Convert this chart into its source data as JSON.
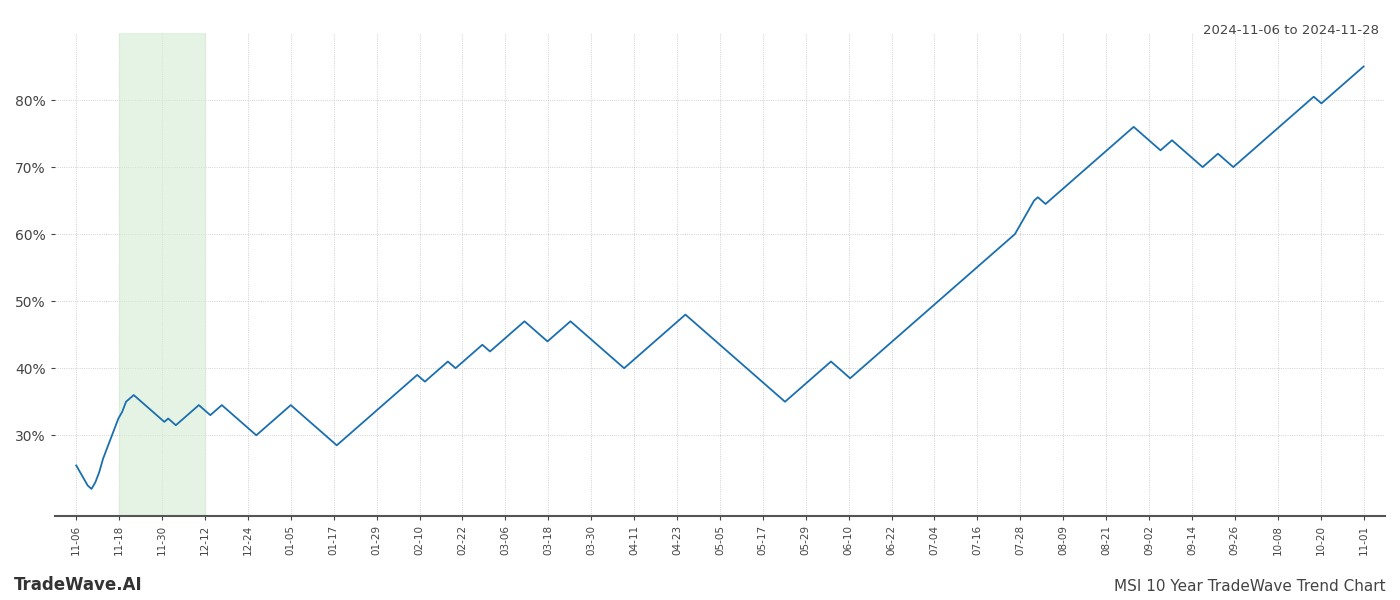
{
  "title_top_right": "2024-11-06 to 2024-11-28",
  "title_bottom_left": "TradeWave.AI",
  "title_bottom_right": "MSI 10 Year TradeWave Trend Chart",
  "line_color": "#1a6faf",
  "line_width": 1.3,
  "highlight_color": "#d4ecd4",
  "highlight_alpha": 0.6,
  "highlight_xstart": 1.0,
  "highlight_xend": 3.0,
  "background_color": "#ffffff",
  "grid_color": "#bbbbbb",
  "grid_style": "dotted",
  "ylim": [
    18,
    90
  ],
  "yticks": [
    30,
    40,
    50,
    60,
    70,
    80
  ],
  "x_labels": [
    "11-06",
    "11-18",
    "11-30",
    "12-12",
    "12-24",
    "01-05",
    "01-17",
    "01-29",
    "02-10",
    "02-22",
    "03-06",
    "03-18",
    "03-30",
    "04-11",
    "04-23",
    "05-05",
    "05-17",
    "05-29",
    "06-10",
    "06-22",
    "07-04",
    "07-16",
    "07-28",
    "08-09",
    "08-21",
    "09-02",
    "09-14",
    "09-26",
    "10-08",
    "10-20",
    "11-01"
  ],
  "values": [
    25.5,
    24.5,
    23.5,
    22.5,
    22.0,
    23.0,
    24.5,
    26.5,
    28.0,
    29.5,
    31.0,
    32.5,
    33.5,
    35.0,
    35.5,
    36.0,
    35.5,
    35.0,
    34.5,
    34.0,
    33.5,
    33.0,
    32.5,
    32.0,
    32.5,
    32.0,
    31.5,
    32.0,
    32.5,
    33.0,
    33.5,
    34.0,
    34.5,
    34.0,
    33.5,
    33.0,
    33.5,
    34.0,
    34.5,
    34.0,
    33.5,
    33.0,
    32.5,
    32.0,
    31.5,
    31.0,
    30.5,
    30.0,
    30.5,
    31.0,
    31.5,
    32.0,
    32.5,
    33.0,
    33.5,
    34.0,
    34.5,
    34.0,
    33.5,
    33.0,
    32.5,
    32.0,
    31.5,
    31.0,
    30.5,
    30.0,
    29.5,
    29.0,
    28.5,
    29.0,
    29.5,
    30.0,
    30.5,
    31.0,
    31.5,
    32.0,
    32.5,
    33.0,
    33.5,
    34.0,
    34.5,
    35.0,
    35.5,
    36.0,
    36.5,
    37.0,
    37.5,
    38.0,
    38.5,
    39.0,
    38.5,
    38.0,
    38.5,
    39.0,
    39.5,
    40.0,
    40.5,
    41.0,
    40.5,
    40.0,
    40.5,
    41.0,
    41.5,
    42.0,
    42.5,
    43.0,
    43.5,
    43.0,
    42.5,
    43.0,
    43.5,
    44.0,
    44.5,
    45.0,
    45.5,
    46.0,
    46.5,
    47.0,
    46.5,
    46.0,
    45.5,
    45.0,
    44.5,
    44.0,
    44.5,
    45.0,
    45.5,
    46.0,
    46.5,
    47.0,
    46.5,
    46.0,
    45.5,
    45.0,
    44.5,
    44.0,
    43.5,
    43.0,
    42.5,
    42.0,
    41.5,
    41.0,
    40.5,
    40.0,
    40.5,
    41.0,
    41.5,
    42.0,
    42.5,
    43.0,
    43.5,
    44.0,
    44.5,
    45.0,
    45.5,
    46.0,
    46.5,
    47.0,
    47.5,
    48.0,
    47.5,
    47.0,
    46.5,
    46.0,
    45.5,
    45.0,
    44.5,
    44.0,
    43.5,
    43.0,
    42.5,
    42.0,
    41.5,
    41.0,
    40.5,
    40.0,
    39.5,
    39.0,
    38.5,
    38.0,
    37.5,
    37.0,
    36.5,
    36.0,
    35.5,
    35.0,
    35.5,
    36.0,
    36.5,
    37.0,
    37.5,
    38.0,
    38.5,
    39.0,
    39.5,
    40.0,
    40.5,
    41.0,
    40.5,
    40.0,
    39.5,
    39.0,
    38.5,
    39.0,
    39.5,
    40.0,
    40.5,
    41.0,
    41.5,
    42.0,
    42.5,
    43.0,
    43.5,
    44.0,
    44.5,
    45.0,
    45.5,
    46.0,
    46.5,
    47.0,
    47.5,
    48.0,
    48.5,
    49.0,
    49.5,
    50.0,
    50.5,
    51.0,
    51.5,
    52.0,
    52.5,
    53.0,
    53.5,
    54.0,
    54.5,
    55.0,
    55.5,
    56.0,
    56.5,
    57.0,
    57.5,
    58.0,
    58.5,
    59.0,
    59.5,
    60.0,
    61.0,
    62.0,
    63.0,
    64.0,
    65.0,
    65.5,
    65.0,
    64.5,
    65.0,
    65.5,
    66.0,
    66.5,
    67.0,
    67.5,
    68.0,
    68.5,
    69.0,
    69.5,
    70.0,
    70.5,
    71.0,
    71.5,
    72.0,
    72.5,
    73.0,
    73.5,
    74.0,
    74.5,
    75.0,
    75.5,
    76.0,
    75.5,
    75.0,
    74.5,
    74.0,
    73.5,
    73.0,
    72.5,
    73.0,
    73.5,
    74.0,
    73.5,
    73.0,
    72.5,
    72.0,
    71.5,
    71.0,
    70.5,
    70.0,
    70.5,
    71.0,
    71.5,
    72.0,
    71.5,
    71.0,
    70.5,
    70.0,
    70.5,
    71.0,
    71.5,
    72.0,
    72.5,
    73.0,
    73.5,
    74.0,
    74.5,
    75.0,
    75.5,
    76.0,
    76.5,
    77.0,
    77.5,
    78.0,
    78.5,
    79.0,
    79.5,
    80.0,
    80.5,
    80.0,
    79.5,
    80.0,
    80.5,
    81.0,
    81.5,
    82.0,
    82.5,
    83.0,
    83.5,
    84.0,
    84.5,
    85.0
  ]
}
